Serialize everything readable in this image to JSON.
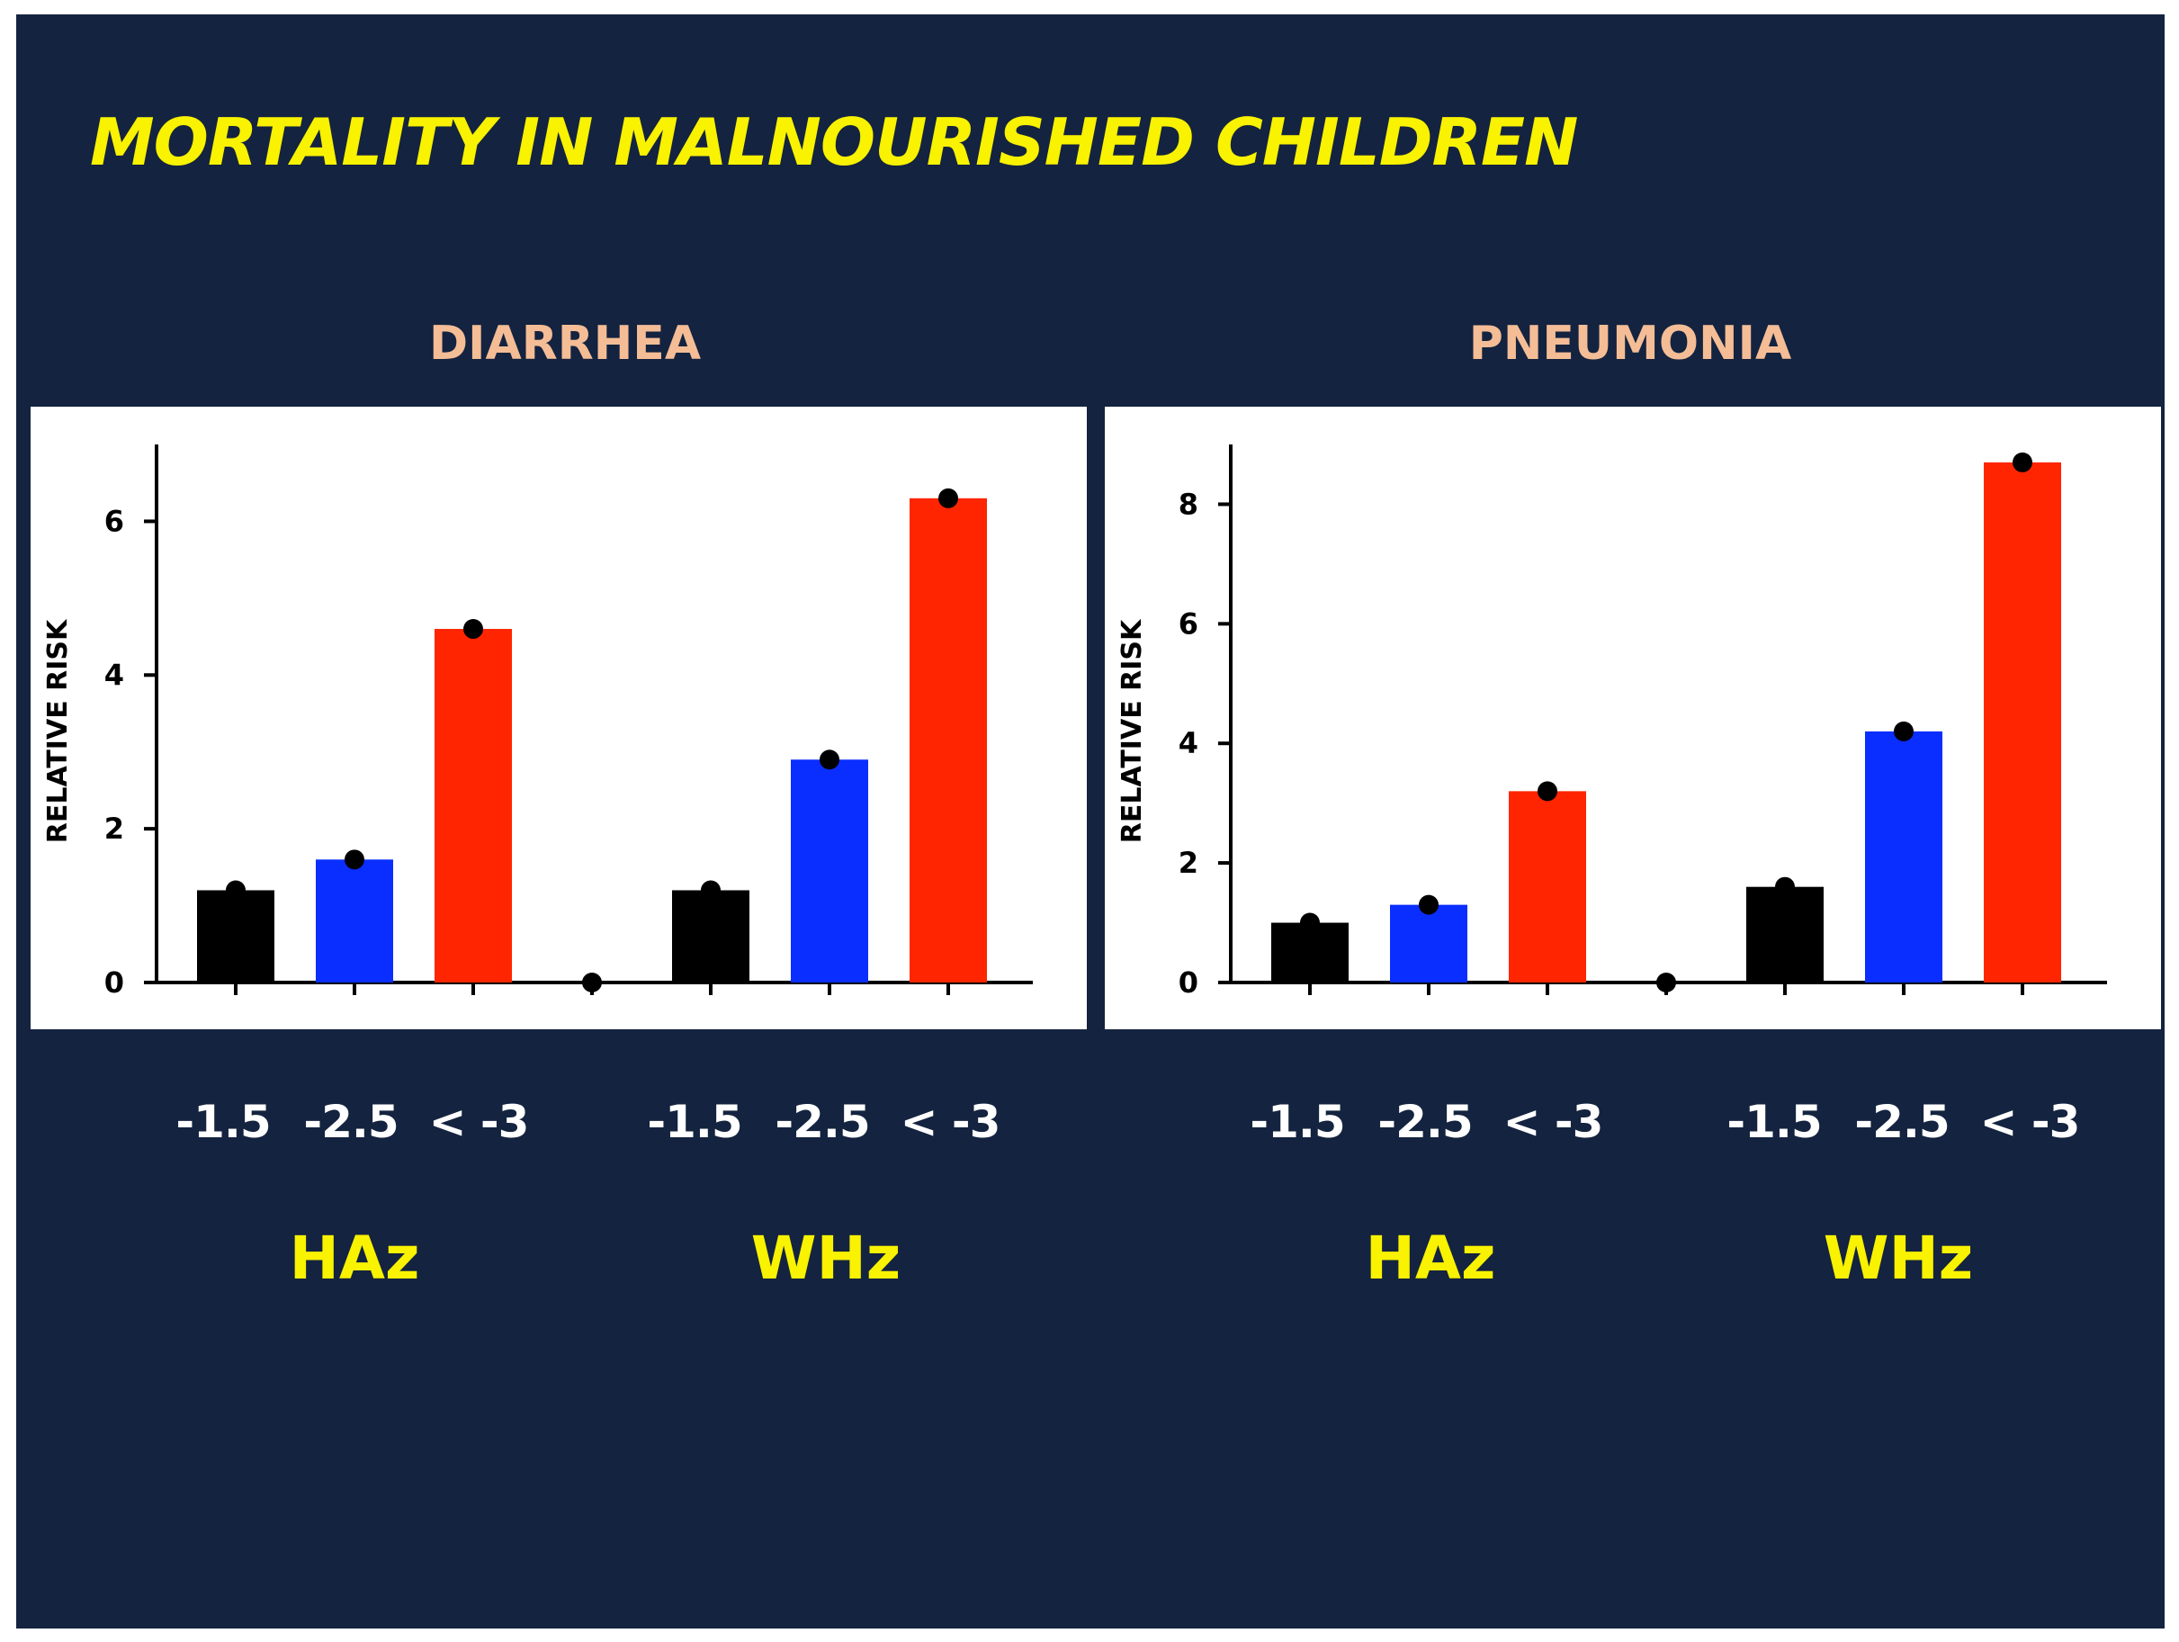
{
  "title": "MORTALITY IN MALNOURISHED CHILDREN",
  "colors": {
    "background": "#14233f",
    "title": "#f9f200",
    "panel_title": "#f4bd96",
    "group_label": "#f9f200",
    "bar_minus_1_5": "#000000",
    "bar_minus_2_5": "#0a2eff",
    "bar_lt_3": "#ff2500"
  },
  "chart_data": [
    {
      "type": "bar",
      "title": "DIARRHEA",
      "ylabel": "RELATIVE RISK",
      "xlabel": "",
      "ylim": [
        0,
        7
      ],
      "yticks": [
        0,
        2,
        4,
        6
      ],
      "groups": [
        "HAz",
        "WHz"
      ],
      "categories": [
        "-1.5",
        "-2.5",
        "< -3"
      ],
      "series": [
        {
          "name": "HAz",
          "values": [
            1.2,
            1.6,
            4.6
          ]
        },
        {
          "name": "WHz",
          "values": [
            1.2,
            2.9,
            6.3
          ]
        }
      ],
      "separator_value": 0
    },
    {
      "type": "bar",
      "title": "PNEUMONIA",
      "ylabel": "RELATIVE RISK",
      "xlabel": "",
      "ylim": [
        0,
        9
      ],
      "yticks": [
        0,
        2,
        4,
        6,
        8
      ],
      "groups": [
        "HAz",
        "WHz"
      ],
      "categories": [
        "-1.5",
        "-2.5",
        "< -3"
      ],
      "series": [
        {
          "name": "HAz",
          "values": [
            1.0,
            1.3,
            3.2
          ]
        },
        {
          "name": "WHz",
          "values": [
            1.6,
            4.2,
            8.7
          ]
        }
      ],
      "separator_value": 0
    }
  ]
}
